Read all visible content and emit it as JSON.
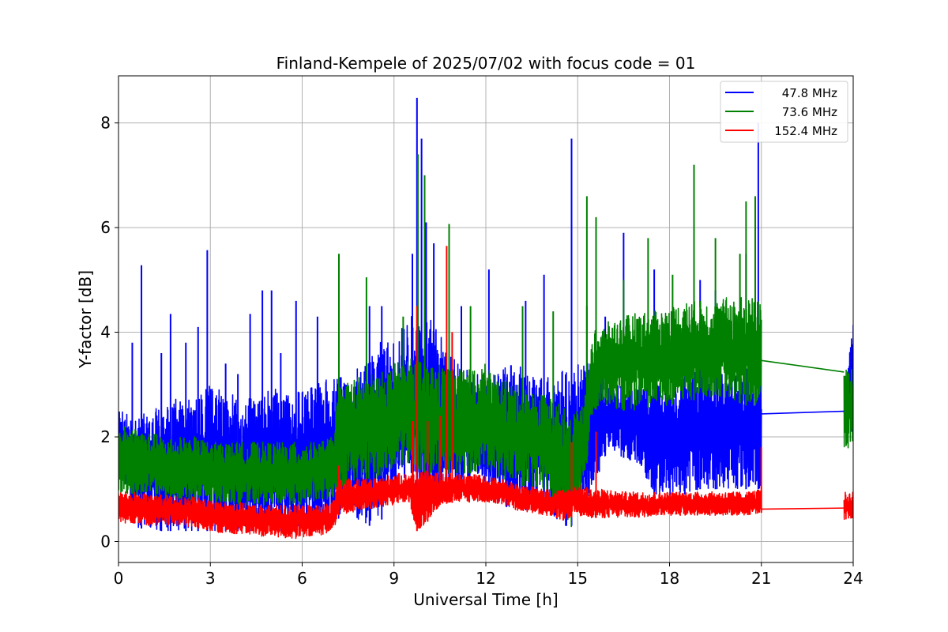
{
  "chart_data": {
    "type": "line",
    "title": "Finland-Kempele of 2025/07/02 with focus code = 01",
    "xlabel": "Universal Time [h]",
    "ylabel": "Y-factor [dB]",
    "xlim": [
      0,
      24
    ],
    "ylim": [
      -0.4,
      8.9
    ],
    "xticks": [
      0,
      3,
      6,
      9,
      12,
      15,
      18,
      21,
      24
    ],
    "yticks": [
      0,
      2,
      4,
      6,
      8
    ],
    "xtick_labels": [
      "0",
      "3",
      "6",
      "9",
      "12",
      "15",
      "18",
      "21",
      "24"
    ],
    "ytick_labels": [
      "0",
      "2",
      "4",
      "6",
      "8"
    ],
    "grid": true,
    "legend_position": "top-right",
    "series": [
      {
        "name": "47.8 MHz",
        "color": "#0000ff",
        "x": [
          0,
          0.5,
          1,
          1.5,
          2,
          2.5,
          3,
          3.5,
          4,
          4.5,
          5,
          5.5,
          6,
          6.5,
          7,
          7.2,
          7.5,
          8,
          8.5,
          9,
          9.5,
          9.75,
          10,
          10.5,
          11,
          11.5,
          12,
          12.5,
          13,
          13.5,
          14,
          14.5,
          14.8,
          15,
          15.5,
          16,
          16.5,
          17,
          17.5,
          18,
          18.5,
          19,
          19.5,
          20,
          20.5,
          20.9,
          21,
          23.7,
          24
        ],
        "y_min": [
          1.7,
          0.3,
          0.2,
          0.2,
          0.2,
          0.2,
          0.2,
          0.2,
          0.2,
          0.2,
          0.2,
          0.2,
          0.2,
          0.3,
          0.3,
          0.3,
          0.3,
          0.3,
          0.3,
          0.9,
          1.1,
          1.0,
          0.9,
          0.9,
          1.1,
          1.0,
          1.1,
          0.7,
          0.6,
          0.6,
          0.6,
          0.3,
          0.3,
          0.6,
          1.0,
          1.8,
          1.6,
          1.5,
          0.8,
          0.8,
          0.9,
          1.0,
          1.0,
          1.0,
          1.0,
          1.0,
          1.0,
          2.45,
          2.0
        ],
        "y_max": [
          2.5,
          2.5,
          2.5,
          2.6,
          2.8,
          2.7,
          3.0,
          2.9,
          2.7,
          2.8,
          3.0,
          2.8,
          2.9,
          3.0,
          3.2,
          3.2,
          3.3,
          3.3,
          3.8,
          3.9,
          4.3,
          4.4,
          4.4,
          4.0,
          3.5,
          3.4,
          3.0,
          3.3,
          3.4,
          3.2,
          3.2,
          3.3,
          3.2,
          3.4,
          3.4,
          3.0,
          3.0,
          3.0,
          3.1,
          3.2,
          3.2,
          3.3,
          3.3,
          3.3,
          3.4,
          3.4,
          3.3,
          2.5,
          4.3
        ],
        "spikes": [
          [
            0.45,
            3.8
          ],
          [
            0.75,
            5.28
          ],
          [
            1.4,
            3.6
          ],
          [
            1.7,
            4.35
          ],
          [
            2.2,
            3.8
          ],
          [
            2.6,
            4.1
          ],
          [
            2.9,
            5.57
          ],
          [
            3.5,
            3.4
          ],
          [
            3.9,
            3.2
          ],
          [
            4.3,
            4.35
          ],
          [
            4.7,
            4.8
          ],
          [
            5.0,
            4.8
          ],
          [
            5.3,
            3.6
          ],
          [
            5.8,
            4.6
          ],
          [
            6.5,
            4.3
          ],
          [
            8.2,
            4.5
          ],
          [
            8.6,
            4.5
          ],
          [
            9.6,
            5.5
          ],
          [
            9.75,
            8.48
          ],
          [
            9.9,
            7.7
          ],
          [
            10.05,
            6.1
          ],
          [
            10.3,
            5.7
          ],
          [
            11.2,
            4.5
          ],
          [
            12.1,
            5.2
          ],
          [
            13.3,
            4.6
          ],
          [
            13.9,
            5.1
          ],
          [
            14.8,
            7.7
          ],
          [
            15.3,
            4.5
          ],
          [
            15.9,
            4.3
          ],
          [
            16.5,
            5.9
          ],
          [
            17.5,
            5.2
          ],
          [
            18.5,
            4.4
          ],
          [
            19.0,
            5.0
          ],
          [
            19.5,
            4.8
          ],
          [
            20.5,
            5.5
          ],
          [
            20.9,
            8.0
          ]
        ]
      },
      {
        "name": "73.6 MHz",
        "color": "#008000",
        "x": [
          0,
          0.5,
          1,
          1.5,
          2,
          2.5,
          3,
          3.5,
          4,
          4.5,
          5,
          5.5,
          6,
          6.5,
          7,
          7.2,
          7.5,
          8,
          8.5,
          9,
          9.5,
          9.75,
          10,
          10.5,
          11,
          11.5,
          12,
          12.5,
          13,
          13.5,
          14,
          14.5,
          14.8,
          15,
          15.3,
          15.5,
          16,
          16.5,
          17,
          17.5,
          18,
          18.5,
          19,
          19.5,
          20,
          20.5,
          21,
          23.7,
          24
        ],
        "y_min": [
          0.9,
          0.9,
          0.85,
          0.8,
          0.8,
          0.75,
          0.7,
          0.75,
          0.7,
          0.7,
          0.7,
          0.7,
          0.7,
          0.75,
          0.8,
          1.0,
          1.1,
          1.2,
          1.2,
          1.4,
          1.5,
          1.4,
          1.3,
          1.3,
          1.3,
          1.3,
          1.4,
          1.2,
          1.1,
          1.0,
          0.9,
          0.5,
          0.2,
          0.8,
          1.5,
          2.5,
          2.6,
          2.5,
          2.5,
          2.6,
          2.6,
          2.7,
          2.7,
          2.8,
          2.7,
          2.6,
          2.6,
          1.7,
          1.8
        ],
        "y_max": [
          2.2,
          2.2,
          2.1,
          2.0,
          2.0,
          2.0,
          1.9,
          1.9,
          1.9,
          1.9,
          1.9,
          1.9,
          1.9,
          1.9,
          2.0,
          3.0,
          3.1,
          3.2,
          3.2,
          3.4,
          3.5,
          3.5,
          3.4,
          3.4,
          3.3,
          3.3,
          3.4,
          3.1,
          3.0,
          2.9,
          2.8,
          2.6,
          2.4,
          2.5,
          3.0,
          4.0,
          4.2,
          4.3,
          4.4,
          4.4,
          4.5,
          4.6,
          4.6,
          4.6,
          4.7,
          4.7,
          4.6,
          3.4,
          3.4
        ],
        "spikes": [
          [
            7.2,
            5.5
          ],
          [
            8.1,
            5.05
          ],
          [
            9.3,
            4.3
          ],
          [
            9.78,
            7.4
          ],
          [
            10.0,
            7.0
          ],
          [
            10.8,
            6.07
          ],
          [
            11.5,
            4.5
          ],
          [
            13.2,
            4.5
          ],
          [
            14.2,
            4.4
          ],
          [
            15.3,
            6.6
          ],
          [
            15.6,
            6.2
          ],
          [
            16.5,
            5.0
          ],
          [
            17.3,
            5.8
          ],
          [
            18.1,
            5.1
          ],
          [
            18.8,
            7.2
          ],
          [
            19.5,
            5.8
          ],
          [
            20.3,
            5.5
          ],
          [
            20.5,
            6.5
          ],
          [
            20.8,
            6.6
          ]
        ]
      },
      {
        "name": "152.4 MHz",
        "color": "#ff0000",
        "x": [
          0,
          0.5,
          1,
          1.5,
          2,
          2.5,
          3,
          3.5,
          4,
          4.5,
          5,
          5.5,
          6,
          6.5,
          7,
          7.2,
          7.5,
          8,
          8.5,
          9,
          9.5,
          9.75,
          10,
          10.5,
          11,
          11.5,
          12,
          12.5,
          13,
          13.5,
          14,
          14.5,
          15,
          15.5,
          16,
          16.5,
          17,
          17.5,
          18,
          18.5,
          19,
          19.5,
          20,
          20.5,
          21,
          23.7,
          24
        ],
        "y_min": [
          0.35,
          0.35,
          0.3,
          0.3,
          0.3,
          0.25,
          0.2,
          0.15,
          0.15,
          0.1,
          0.1,
          0.05,
          0.05,
          0.1,
          0.2,
          0.5,
          0.55,
          0.6,
          0.65,
          0.7,
          0.75,
          0.2,
          0.3,
          0.7,
          0.75,
          0.75,
          0.75,
          0.7,
          0.6,
          0.55,
          0.5,
          0.4,
          0.5,
          0.45,
          0.45,
          0.45,
          0.45,
          0.5,
          0.5,
          0.5,
          0.5,
          0.5,
          0.5,
          0.5,
          0.55,
          0.35,
          0.45
        ],
        "y_max": [
          0.95,
          0.95,
          0.9,
          0.9,
          0.85,
          0.85,
          0.8,
          0.75,
          0.75,
          0.7,
          0.7,
          0.7,
          0.7,
          0.7,
          0.75,
          1.2,
          1.2,
          1.2,
          1.2,
          1.3,
          1.3,
          1.3,
          1.35,
          1.3,
          1.3,
          1.3,
          1.25,
          1.2,
          1.1,
          1.05,
          1.0,
          1.0,
          1.1,
          1.0,
          1.0,
          0.95,
          0.95,
          0.95,
          0.95,
          0.95,
          0.95,
          0.95,
          0.95,
          0.95,
          1.0,
          0.95,
          0.95
        ],
        "spikes": [
          [
            7.2,
            1.45
          ],
          [
            9.6,
            2.3
          ],
          [
            9.75,
            4.5
          ],
          [
            10.1,
            2.3
          ],
          [
            10.5,
            2.4
          ],
          [
            10.72,
            5.65
          ],
          [
            10.9,
            4.0
          ],
          [
            14.8,
            1.9
          ],
          [
            15.6,
            2.1
          ],
          [
            21.0,
            1.8
          ]
        ]
      }
    ],
    "connectors": [
      {
        "series": "47.8 MHz",
        "from": [
          21,
          2.44
        ],
        "to": [
          23.7,
          2.49
        ]
      },
      {
        "series": "73.6 MHz",
        "from": [
          21,
          3.46
        ],
        "to": [
          23.7,
          3.24
        ]
      },
      {
        "series": "152.4 MHz",
        "from": [
          21,
          0.62
        ],
        "to": [
          23.7,
          0.64
        ]
      }
    ]
  }
}
